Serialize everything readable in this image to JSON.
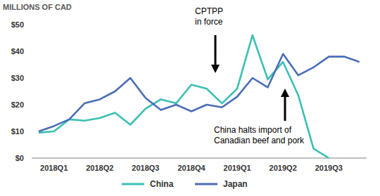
{
  "chart_data": {
    "type": "line",
    "y_label": "MILLIONS OF CAD",
    "categories": [
      null,
      "2018Q1",
      null,
      null,
      "2018Q2",
      null,
      null,
      "2018Q3",
      null,
      null,
      "2018Q4",
      null,
      null,
      "2019Q1",
      null,
      null,
      "2019Q2",
      null,
      null,
      "2019Q3",
      null,
      null
    ],
    "series": [
      {
        "name": "China",
        "color": "#3cbfb3",
        "values": [
          9.5,
          10,
          14.5,
          14,
          15,
          17,
          12.5,
          18.5,
          22,
          20.5,
          27.5,
          26,
          20.5,
          26,
          46,
          29.5,
          36,
          23.5,
          3.5,
          0,
          null,
          null
        ]
      },
      {
        "name": "Japan",
        "color": "#4a6db5",
        "values": [
          10,
          12,
          14.5,
          20.5,
          22,
          25,
          30,
          22.5,
          18,
          20,
          17.5,
          20,
          19,
          23,
          30,
          26.5,
          39,
          31,
          34,
          38,
          38,
          36
        ]
      }
    ],
    "ylim": [
      0,
      50
    ],
    "yticks": [
      {
        "value": 0,
        "label": "$0"
      },
      {
        "value": 10,
        "label": "$10"
      },
      {
        "value": 20,
        "label": "$20"
      },
      {
        "value": 30,
        "label": "$30"
      },
      {
        "value": 40,
        "label": "$40"
      },
      {
        "value": 50,
        "label": "$50"
      }
    ],
    "grid": false,
    "legend": "bottom",
    "annotations": [
      {
        "lines": [
          "CPTPP",
          "in force"
        ]
      },
      {
        "lines": [
          "China halts import of",
          "Canadian beef and pork"
        ]
      }
    ]
  }
}
